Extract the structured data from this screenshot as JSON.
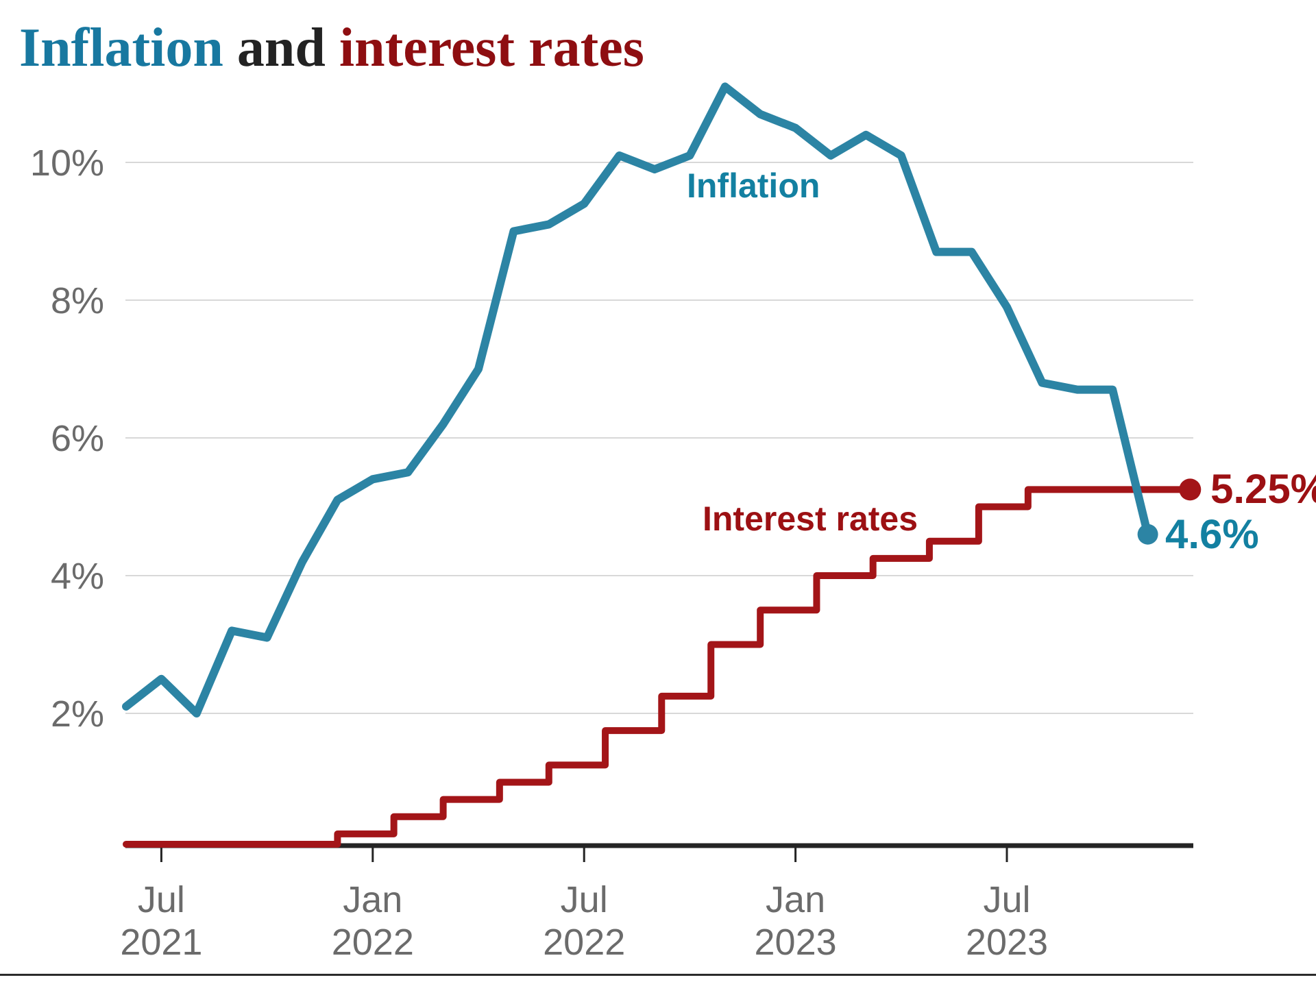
{
  "title": {
    "part_inflation": "Inflation",
    "part_and": " and ",
    "part_rates": "interest rates",
    "color_inflation": "#1878A0",
    "color_and": "#232323",
    "color_rates": "#8E0E11"
  },
  "chart_data": {
    "type": "line",
    "title": "Inflation and interest rates",
    "xlabel": "",
    "ylabel": "",
    "ylim": [
      0,
      11.7
    ],
    "grid": "horizontal only",
    "legend_position": "inline labels on lines",
    "x_axis": {
      "unit": "months from mid-Jun 2021",
      "ticks": [
        {
          "u": 1,
          "line1": "Jul",
          "line2": "2021"
        },
        {
          "u": 7,
          "line1": "Jan",
          "line2": "2022"
        },
        {
          "u": 13,
          "line1": "Jul",
          "line2": "2022"
        },
        {
          "u": 19,
          "line1": "Jan",
          "line2": "2023"
        },
        {
          "u": 25,
          "line1": "Jul",
          "line2": "2023"
        }
      ]
    },
    "y_axis": {
      "ticks": [
        {
          "v": 2,
          "label": "2%"
        },
        {
          "v": 4,
          "label": "4%"
        },
        {
          "v": 6,
          "label": "6%"
        },
        {
          "v": 8,
          "label": "8%"
        },
        {
          "v": 10,
          "label": "10%"
        }
      ]
    },
    "series": [
      {
        "name": "Inflation",
        "label": "Inflation",
        "end_label": "4.6%",
        "color": "#2C84A4",
        "label_color": "#1380A1",
        "start_u": 0,
        "months": [
          "May 2021",
          "Jun 2021",
          "Jul 2021",
          "Aug 2021",
          "Sep 2021",
          "Oct 2021",
          "Nov 2021",
          "Dec 2021",
          "Jan 2022",
          "Feb 2022",
          "Mar 2022",
          "Apr 2022",
          "May 2022",
          "Jun 2022",
          "Jul 2022",
          "Aug 2022",
          "Sep 2022",
          "Oct 2022",
          "Nov 2022",
          "Dec 2022",
          "Jan 2023",
          "Feb 2023",
          "Mar 2023",
          "Apr 2023",
          "May 2023",
          "Jun 2023",
          "Jul 2023",
          "Aug 2023",
          "Sep 2023",
          "Oct 2023"
        ],
        "values": [
          2.1,
          2.5,
          2.0,
          3.2,
          3.1,
          4.2,
          5.1,
          5.4,
          5.5,
          6.2,
          7.0,
          9.0,
          9.1,
          9.4,
          10.1,
          9.9,
          10.1,
          11.1,
          10.7,
          10.5,
          10.1,
          10.4,
          10.1,
          8.7,
          8.7,
          7.9,
          6.8,
          6.7,
          6.7,
          4.6
        ]
      },
      {
        "name": "Interest rates",
        "label": "Interest rates",
        "end_label": "5.25%",
        "color": "#A31518",
        "label_color": "#9C1013",
        "step_changes": [
          {
            "u": 0.0,
            "rate": 0.1
          },
          {
            "u": 6.0,
            "rate": 0.25
          },
          {
            "u": 7.6,
            "rate": 0.5
          },
          {
            "u": 9.0,
            "rate": 0.75
          },
          {
            "u": 10.6,
            "rate": 1.0
          },
          {
            "u": 12.0,
            "rate": 1.25
          },
          {
            "u": 13.6,
            "rate": 1.75
          },
          {
            "u": 15.2,
            "rate": 2.25
          },
          {
            "u": 16.6,
            "rate": 3.0
          },
          {
            "u": 18.0,
            "rate": 3.5
          },
          {
            "u": 19.6,
            "rate": 4.0
          },
          {
            "u": 21.2,
            "rate": 4.25
          },
          {
            "u": 22.8,
            "rate": 4.5
          },
          {
            "u": 24.2,
            "rate": 5.0
          },
          {
            "u": 25.6,
            "rate": 5.25
          }
        ],
        "end_u": 30.2
      }
    ],
    "style": {
      "grid_color": "#D8D8D8",
      "axis_color": "#242424",
      "axis_label_color": "#6B6B6B",
      "background": "#FFFFFF"
    }
  }
}
